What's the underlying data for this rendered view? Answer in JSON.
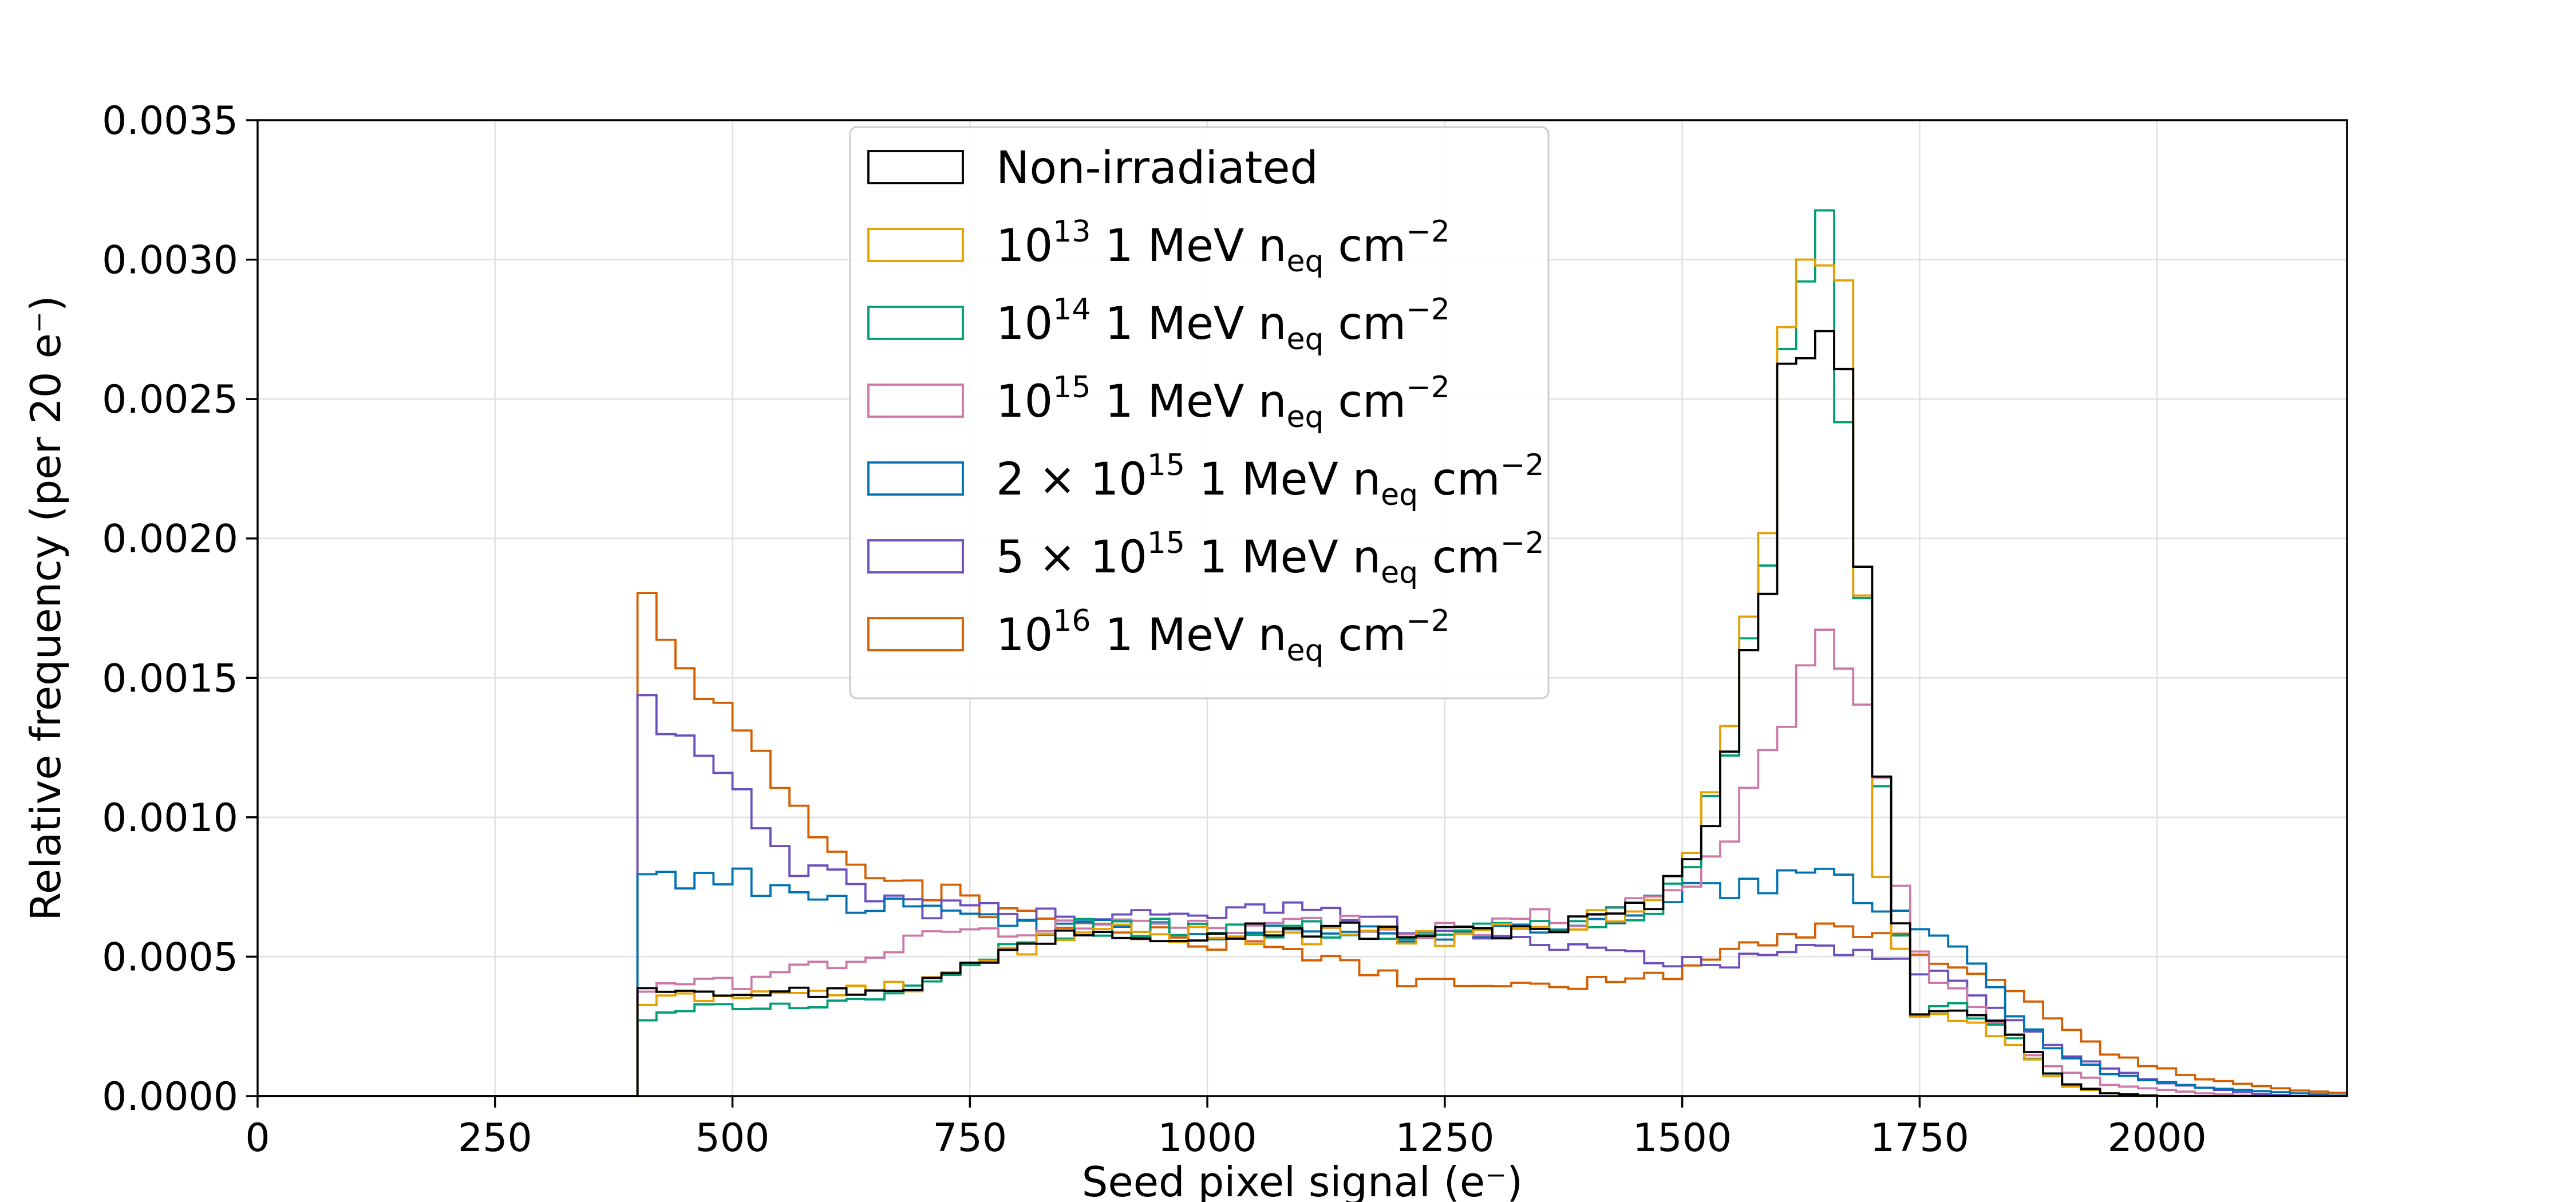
{
  "chart_data": {
    "type": "step-histogram",
    "xlabel": "Seed pixel signal (e⁻)",
    "ylabel": "Relative frequency (per 20 e⁻)",
    "xlim": [
      0,
      2200
    ],
    "ylim": [
      0,
      0.0035
    ],
    "bin_width": 20,
    "x_start": 400,
    "x_ticks": [
      0,
      250,
      500,
      750,
      1000,
      1250,
      1500,
      1750,
      2000
    ],
    "x_tick_labels": [
      "0",
      "250",
      "500",
      "750",
      "1000",
      "1250",
      "1500",
      "1750",
      "2000"
    ],
    "y_ticks": [
      0,
      0.0005,
      0.001,
      0.0015,
      0.002,
      0.0025,
      0.003,
      0.0035
    ],
    "y_tick_labels": [
      "0.0000",
      "0.0005",
      "0.0010",
      "0.0015",
      "0.0020",
      "0.0025",
      "0.0030",
      "0.0035"
    ],
    "grid": true,
    "legend_position": "top-center",
    "series": [
      {
        "name": "Non-irradiated",
        "legend": {
          "pre": "",
          "exp": "",
          "unit": "Non-irradiated",
          "sub": "",
          "post": "",
          "post_exp": ""
        },
        "color": "#000000",
        "knots": [
          [
            400,
            0.0004
          ],
          [
            500,
            0.00038
          ],
          [
            600,
            0.00037
          ],
          [
            700,
            0.0004
          ],
          [
            780,
            0.0005
          ],
          [
            850,
            0.0006
          ],
          [
            950,
            0.00059
          ],
          [
            1100,
            0.0006
          ],
          [
            1250,
            0.00058
          ],
          [
            1400,
            0.00062
          ],
          [
            1480,
            0.0007
          ],
          [
            1520,
            0.0009
          ],
          [
            1560,
            0.0014
          ],
          [
            1590,
            0.0019
          ],
          [
            1610,
            0.0025
          ],
          [
            1630,
            0.0028
          ],
          [
            1650,
            0.00288
          ],
          [
            1670,
            0.0026
          ],
          [
            1690,
            0.0018
          ],
          [
            1710,
            0.0012
          ],
          [
            1730,
            0.0006
          ],
          [
            1750,
            0.00031
          ],
          [
            1800,
            0.00032
          ],
          [
            1850,
            0.00022
          ],
          [
            1900,
            5e-05
          ],
          [
            1950,
            1e-05
          ],
          [
            2000,
            0.0
          ]
        ]
      },
      {
        "name": "10¹³ 1 MeV n_eq cm⁻²",
        "legend": {
          "pre": "10",
          "exp": "13",
          "unit": " 1 MeV n",
          "sub": "eq",
          "post": " cm",
          "post_exp": "−2"
        },
        "color": "#e69f00",
        "knots": [
          [
            400,
            0.00033
          ],
          [
            500,
            0.00037
          ],
          [
            600,
            0.00037
          ],
          [
            700,
            0.0004
          ],
          [
            780,
            0.0005
          ],
          [
            850,
            0.00058
          ],
          [
            950,
            0.00058
          ],
          [
            1100,
            0.00058
          ],
          [
            1250,
            0.00056
          ],
          [
            1400,
            0.00062
          ],
          [
            1480,
            0.0007
          ],
          [
            1520,
            0.00095
          ],
          [
            1560,
            0.00152
          ],
          [
            1590,
            0.002
          ],
          [
            1610,
            0.0027
          ],
          [
            1630,
            0.0031
          ],
          [
            1650,
            0.00315
          ],
          [
            1670,
            0.0028
          ],
          [
            1690,
            0.0018
          ],
          [
            1710,
            0.0008
          ],
          [
            1730,
            0.0005
          ],
          [
            1750,
            0.0003
          ],
          [
            1800,
            0.00028
          ],
          [
            1850,
            0.00018
          ],
          [
            1900,
            4e-05
          ],
          [
            1950,
            1e-05
          ],
          [
            2000,
            0.0
          ]
        ]
      },
      {
        "name": "10¹⁴ 1 MeV n_eq cm⁻²",
        "legend": {
          "pre": "10",
          "exp": "14",
          "unit": " 1 MeV n",
          "sub": "eq",
          "post": " cm",
          "post_exp": "−2"
        },
        "color": "#009e73",
        "knots": [
          [
            400,
            0.00027
          ],
          [
            500,
            0.00033
          ],
          [
            600,
            0.00033
          ],
          [
            700,
            0.00038
          ],
          [
            780,
            0.0005
          ],
          [
            850,
            0.0006
          ],
          [
            950,
            0.0006
          ],
          [
            1100,
            0.0006
          ],
          [
            1250,
            0.00058
          ],
          [
            1400,
            0.00062
          ],
          [
            1480,
            0.0007
          ],
          [
            1520,
            0.0009
          ],
          [
            1560,
            0.0014
          ],
          [
            1590,
            0.002
          ],
          [
            1610,
            0.0027
          ],
          [
            1630,
            0.00295
          ],
          [
            1650,
            0.003
          ],
          [
            1670,
            0.0025
          ],
          [
            1690,
            0.0019
          ],
          [
            1710,
            0.0011
          ],
          [
            1730,
            0.0006
          ],
          [
            1750,
            0.0003
          ],
          [
            1800,
            0.00032
          ],
          [
            1850,
            0.0002
          ],
          [
            1900,
            5e-05
          ],
          [
            1950,
            1e-05
          ],
          [
            2000,
            0.0
          ]
        ]
      },
      {
        "name": "10¹⁵ 1 MeV n_eq cm⁻²",
        "legend": {
          "pre": "10",
          "exp": "15",
          "unit": " 1 MeV n",
          "sub": "eq",
          "post": " cm",
          "post_exp": "−2"
        },
        "color": "#cc79a7",
        "knots": [
          [
            400,
            0.00037
          ],
          [
            450,
            0.00041
          ],
          [
            500,
            0.0004
          ],
          [
            560,
            0.00045
          ],
          [
            640,
            0.0005
          ],
          [
            700,
            0.00056
          ],
          [
            800,
            0.0006
          ],
          [
            950,
            0.00062
          ],
          [
            1100,
            0.00062
          ],
          [
            1250,
            0.0006
          ],
          [
            1400,
            0.00065
          ],
          [
            1500,
            0.00075
          ],
          [
            1560,
            0.001
          ],
          [
            1600,
            0.0013
          ],
          [
            1640,
            0.0016
          ],
          [
            1660,
            0.00158
          ],
          [
            1690,
            0.0014
          ],
          [
            1710,
            0.0011
          ],
          [
            1740,
            0.0006
          ],
          [
            1770,
            0.00042
          ],
          [
            1820,
            0.0003
          ],
          [
            1880,
            0.00012
          ],
          [
            1950,
            4e-05
          ],
          [
            2050,
            1e-05
          ],
          [
            2100,
            0.0
          ]
        ]
      },
      {
        "name": "2 × 10¹⁵ 1 MeV n_eq cm⁻²",
        "legend": {
          "pre": "2 × 10",
          "exp": "15",
          "unit": " 1 MeV n",
          "sub": "eq",
          "post": " cm",
          "post_exp": "−2"
        },
        "color": "#0072b2",
        "knots": [
          [
            400,
            0.0008
          ],
          [
            500,
            0.00078
          ],
          [
            600,
            0.00072
          ],
          [
            700,
            0.00065
          ],
          [
            800,
            0.00062
          ],
          [
            900,
            0.0006
          ],
          [
            1000,
            0.00058
          ],
          [
            1100,
            0.00058
          ],
          [
            1200,
            0.00058
          ],
          [
            1300,
            0.0006
          ],
          [
            1400,
            0.00062
          ],
          [
            1500,
            0.00072
          ],
          [
            1550,
            0.00075
          ],
          [
            1650,
            0.00078
          ],
          [
            1700,
            0.00072
          ],
          [
            1750,
            0.00062
          ],
          [
            1800,
            0.0005
          ],
          [
            1850,
            0.0003
          ],
          [
            1900,
            0.00015
          ],
          [
            1950,
            8e-05
          ],
          [
            2050,
            3e-05
          ],
          [
            2150,
            1e-05
          ],
          [
            2200,
            0.0
          ]
        ]
      },
      {
        "name": "5 × 10¹⁵ 1 MeV n_eq cm⁻²",
        "legend": {
          "pre": "5 × 10",
          "exp": "15",
          "unit": " 1 MeV n",
          "sub": "eq",
          "post": " cm",
          "post_exp": "−2"
        },
        "color": "#6a4fbf",
        "knots": [
          [
            400,
            0.0015
          ],
          [
            430,
            0.0013
          ],
          [
            480,
            0.0012
          ],
          [
            520,
            0.001
          ],
          [
            560,
            0.00085
          ],
          [
            620,
            0.00075
          ],
          [
            700,
            0.00068
          ],
          [
            800,
            0.00065
          ],
          [
            900,
            0.00065
          ],
          [
            1000,
            0.00066
          ],
          [
            1100,
            0.00067
          ],
          [
            1200,
            0.00062
          ],
          [
            1300,
            0.00058
          ],
          [
            1400,
            0.00052
          ],
          [
            1500,
            0.00048
          ],
          [
            1600,
            0.0005
          ],
          [
            1650,
            0.00052
          ],
          [
            1700,
            0.00052
          ],
          [
            1750,
            0.00045
          ],
          [
            1800,
            0.0004
          ],
          [
            1850,
            0.00028
          ],
          [
            1900,
            0.00015
          ],
          [
            2000,
            5e-05
          ],
          [
            2100,
            1e-05
          ],
          [
            2150,
            0.0
          ]
        ]
      },
      {
        "name": "10¹⁶ 1 MeV n_eq cm⁻²",
        "legend": {
          "pre": "10",
          "exp": "16",
          "unit": " 1 MeV n",
          "sub": "eq",
          "post": " cm",
          "post_exp": "−2"
        },
        "color": "#d55e00",
        "knots": [
          [
            400,
            0.00185
          ],
          [
            440,
            0.0016
          ],
          [
            500,
            0.0013
          ],
          [
            560,
            0.00105
          ],
          [
            620,
            0.00085
          ],
          [
            700,
            0.00075
          ],
          [
            800,
            0.00065
          ],
          [
            900,
            0.0006
          ],
          [
            1000,
            0.00055
          ],
          [
            1100,
            0.0005
          ],
          [
            1200,
            0.00042
          ],
          [
            1300,
            0.0004
          ],
          [
            1400,
            0.0004
          ],
          [
            1500,
            0.00045
          ],
          [
            1550,
            0.0005
          ],
          [
            1600,
            0.00058
          ],
          [
            1650,
            0.0006
          ],
          [
            1700,
            0.0006
          ],
          [
            1750,
            0.00052
          ],
          [
            1800,
            0.00045
          ],
          [
            1850,
            0.00038
          ],
          [
            1900,
            0.00025
          ],
          [
            1950,
            0.00015
          ],
          [
            2050,
            6e-05
          ],
          [
            2150,
            2e-05
          ],
          [
            2200,
            1e-05
          ]
        ]
      }
    ]
  }
}
